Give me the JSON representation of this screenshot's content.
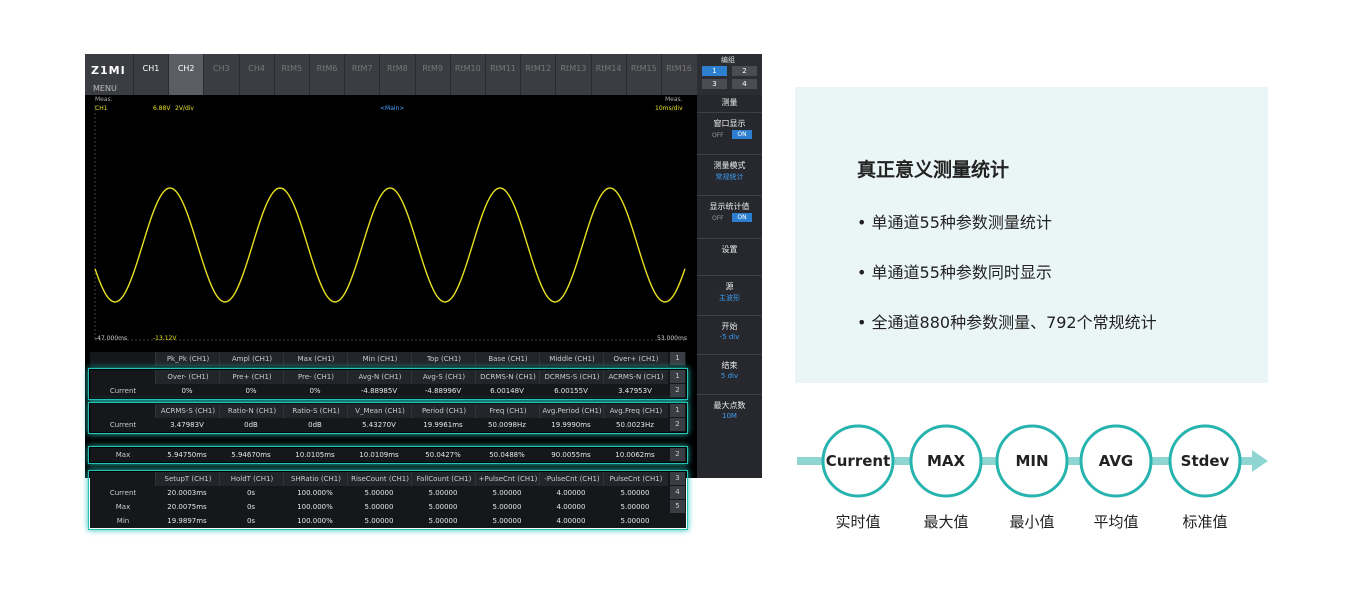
{
  "scope": {
    "logo": "Z1MI",
    "menu": "MENU",
    "tabs": [
      "CH1",
      "CH2",
      "CH3",
      "CH4",
      "RtM5",
      "RtM6",
      "RtM7",
      "RtM8",
      "RtM9",
      "RtM10",
      "RtM11",
      "RtM12",
      "RtM13",
      "RtM14",
      "RtM15",
      "RtM16"
    ],
    "group": {
      "title": "编组",
      "buttons": [
        "1",
        "2",
        "3",
        "4"
      ]
    },
    "wave": {
      "meas_left": "Meas.",
      "meas_right": "Meas.",
      "channel": "CH1",
      "level": "6.88V",
      "scale": "2V/div",
      "main": "<Main>",
      "time_scale": "10ms/div",
      "x_start": "-47.000ms",
      "offset": "-13.12V",
      "x_end": "53.000ms"
    },
    "side_menu": [
      {
        "label": "测量"
      },
      {
        "label": "窗口显示",
        "off": "OFF",
        "on": "ON"
      },
      {
        "label": "测量模式",
        "value": "常规统计"
      },
      {
        "label": "显示统计值",
        "off": "OFF",
        "on": "ON"
      },
      {
        "label": "设置"
      },
      {
        "label": "源",
        "value": "主波形"
      },
      {
        "label": "开始",
        "value": "-5 div"
      },
      {
        "label": "结束",
        "value": "5 div"
      },
      {
        "label": "最大点数",
        "value": "10M"
      }
    ],
    "tables": [
      {
        "headers": [
          "Pk_Pk (CH1)",
          "Ampl (CH1)",
          "Max (CH1)",
          "Min (CH1)",
          "Top (CH1)",
          "Base (CH1)",
          "Middle (CH1)",
          "Over+ (CH1)"
        ],
        "rows": [],
        "indices": [
          "1"
        ]
      },
      {
        "headers": [
          "Over- (CH1)",
          "Pre+ (CH1)",
          "Pre- (CH1)",
          "Avg-N (CH1)",
          "Avg-S (CH1)",
          "DCRMS-N (CH1)",
          "DCRMS-S (CH1)",
          "ACRMS-N (CH1)"
        ],
        "rows": [
          {
            "label": "Current",
            "cells": [
              "0%",
              "0%",
              "0%",
              "-4.88985V",
              "-4.88996V",
              "6.00148V",
              "6.00155V",
              "3.47953V"
            ]
          }
        ],
        "indices": [
          "1",
          "2"
        ]
      },
      {
        "headers": [
          "ACRMS-S (CH1)",
          "Ratio-N (CH1)",
          "Ratio-S (CH1)",
          "V_Mean (CH1)",
          "Period (CH1)",
          "Freq (CH1)",
          "Avg.Period (CH1)",
          "Avg.Freq (CH1)"
        ],
        "rows": [
          {
            "label": "Current",
            "cells": [
              "3.47983V",
              "0dB",
              "0dB",
              "5.43270V",
              "19.9961ms",
              "50.0098Hz",
              "19.9990ms",
              "50.0023Hz"
            ]
          }
        ],
        "indices": [
          "1",
          "2"
        ]
      },
      {
        "rows": [
          {
            "label": "Max",
            "cells": [
              "5.94750ms",
              "5.94670ms",
              "10.0105ms",
              "10.0109ms",
              "50.0427%",
              "50.0488%",
              "90.0055ms",
              "10.0062ms"
            ]
          }
        ],
        "indices": [
          "2"
        ]
      },
      {
        "headers": [
          "SetupT (CH1)",
          "HoldT (CH1)",
          "SHRatio (CH1)",
          "RiseCount (CH1)",
          "FallCount (CH1)",
          "+PulseCnt (CH1)",
          "-PulseCnt (CH1)",
          "PulseCnt (CH1)"
        ],
        "rows": [
          {
            "label": "Current",
            "cells": [
              "20.0003ms",
              "0s",
              "100.000%",
              "5.00000",
              "5.00000",
              "5.00000",
              "4.00000",
              "5.00000"
            ]
          },
          {
            "label": "Max",
            "cells": [
              "20.0075ms",
              "0s",
              "100.000%",
              "5.00000",
              "5.00000",
              "5.00000",
              "4.00000",
              "5.00000"
            ]
          },
          {
            "label": "Min",
            "cells": [
              "19.9897ms",
              "0s",
              "100.000%",
              "5.00000",
              "5.00000",
              "5.00000",
              "4.00000",
              "5.00000"
            ]
          }
        ],
        "indices": [
          "3",
          "4",
          "5"
        ]
      }
    ]
  },
  "panel": {
    "title": "真正意义测量统计",
    "bullets": [
      "单通道55种参数测量统计",
      "单通道55种参数同时显示",
      "全通道880种参数测量、792个常规统计"
    ]
  },
  "flow": [
    {
      "name": "Current",
      "label": "实时值"
    },
    {
      "name": "MAX",
      "label": "最大值"
    },
    {
      "name": "MIN",
      "label": "最小值"
    },
    {
      "name": "AVG",
      "label": "平均值"
    },
    {
      "name": "Stdev",
      "label": "标准值"
    }
  ]
}
